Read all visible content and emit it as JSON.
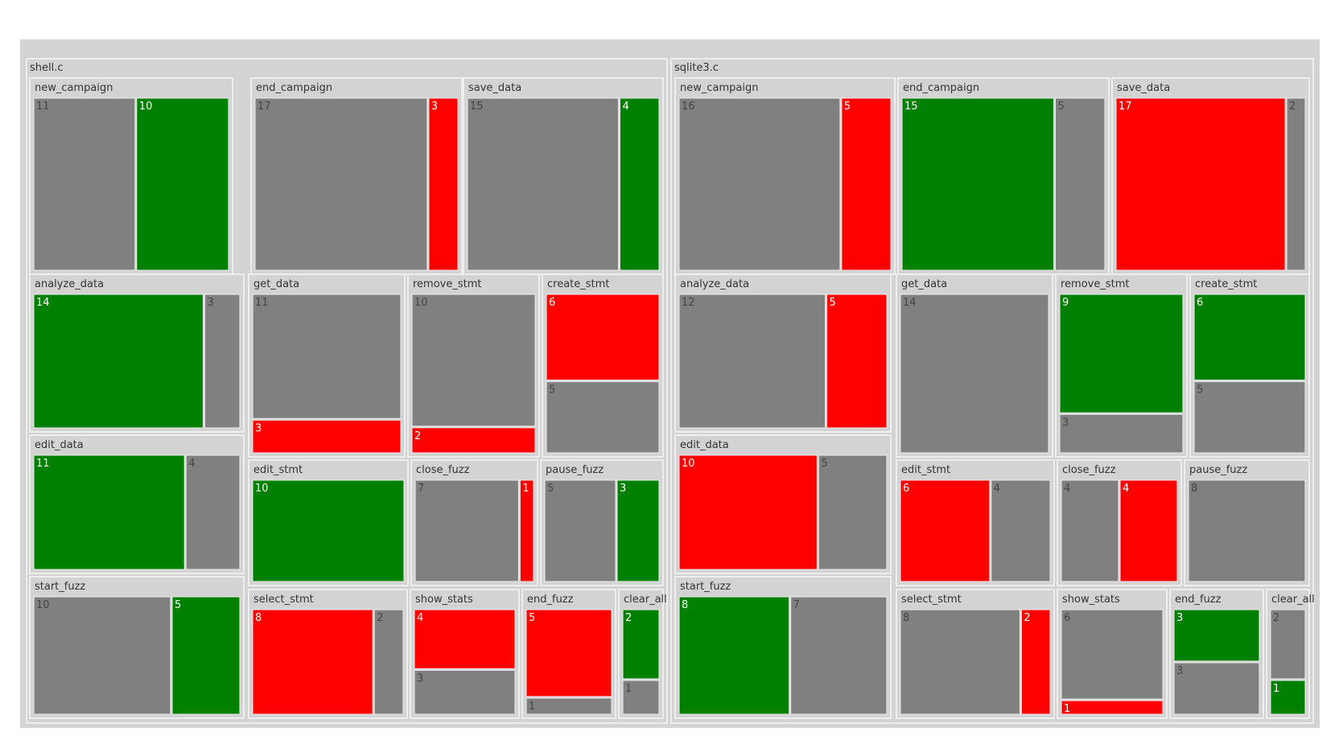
{
  "colors": {
    "background": "#ffffff",
    "root_fill": "#d3d3d3",
    "group_fill": "#d3d3d3",
    "border": "#eeeeee",
    "label_text": "#333333",
    "neutral_fill": "#808080",
    "positive_fill": "#008000",
    "negative_fill": "#ff0000",
    "leaf_text_light": "#ffffff",
    "leaf_text_dark": "#444444"
  },
  "chart_data": {
    "type": "treemap",
    "title": "",
    "color_categories": {
      "neutral": "#808080",
      "increase": "#008000",
      "decrease": "#ff0000"
    },
    "files": [
      {
        "name": "shell.c",
        "functions": [
          {
            "name": "new_campaign",
            "cells": [
              {
                "value": 11,
                "status": "neutral"
              },
              {
                "value": 10,
                "status": "increase"
              }
            ]
          },
          {
            "name": "end_campaign",
            "cells": [
              {
                "value": 17,
                "status": "neutral"
              },
              {
                "value": 3,
                "status": "decrease"
              }
            ]
          },
          {
            "name": "save_data",
            "cells": [
              {
                "value": 15,
                "status": "neutral"
              },
              {
                "value": 4,
                "status": "increase"
              }
            ]
          },
          {
            "name": "analyze_data",
            "cells": [
              {
                "value": 14,
                "status": "increase"
              },
              {
                "value": 3,
                "status": "neutral"
              }
            ]
          },
          {
            "name": "edit_data",
            "cells": [
              {
                "value": 11,
                "status": "increase"
              },
              {
                "value": 4,
                "status": "neutral"
              }
            ]
          },
          {
            "name": "start_fuzz",
            "cells": [
              {
                "value": 10,
                "status": "neutral"
              },
              {
                "value": 5,
                "status": "increase"
              }
            ]
          },
          {
            "name": "get_data",
            "cells": [
              {
                "value": 11,
                "status": "neutral"
              },
              {
                "value": 3,
                "status": "decrease"
              }
            ]
          },
          {
            "name": "remove_stmt",
            "cells": [
              {
                "value": 10,
                "status": "neutral"
              },
              {
                "value": 2,
                "status": "decrease"
              }
            ]
          },
          {
            "name": "create_stmt",
            "cells": [
              {
                "value": 6,
                "status": "decrease"
              },
              {
                "value": 5,
                "status": "neutral"
              }
            ]
          },
          {
            "name": "edit_stmt",
            "cells": [
              {
                "value": 10,
                "status": "increase"
              }
            ]
          },
          {
            "name": "close_fuzz",
            "cells": [
              {
                "value": 7,
                "status": "neutral"
              },
              {
                "value": 1,
                "status": "decrease"
              }
            ]
          },
          {
            "name": "pause_fuzz",
            "cells": [
              {
                "value": 5,
                "status": "neutral"
              },
              {
                "value": 3,
                "status": "increase"
              }
            ]
          },
          {
            "name": "select_stmt",
            "cells": [
              {
                "value": 8,
                "status": "decrease"
              },
              {
                "value": 2,
                "status": "neutral"
              }
            ]
          },
          {
            "name": "show_stats",
            "cells": [
              {
                "value": 4,
                "status": "decrease"
              },
              {
                "value": 3,
                "status": "neutral"
              }
            ]
          },
          {
            "name": "end_fuzz",
            "cells": [
              {
                "value": 5,
                "status": "decrease"
              },
              {
                "value": 1,
                "status": "neutral"
              }
            ]
          },
          {
            "name": "clear_all",
            "cells": [
              {
                "value": 2,
                "status": "increase"
              },
              {
                "value": 1,
                "status": "neutral"
              }
            ]
          }
        ]
      },
      {
        "name": "sqlite3.c",
        "functions": [
          {
            "name": "new_campaign",
            "cells": [
              {
                "value": 16,
                "status": "neutral"
              },
              {
                "value": 5,
                "status": "decrease"
              }
            ]
          },
          {
            "name": "end_campaign",
            "cells": [
              {
                "value": 15,
                "status": "increase"
              },
              {
                "value": 5,
                "status": "neutral"
              }
            ]
          },
          {
            "name": "save_data",
            "cells": [
              {
                "value": 17,
                "status": "decrease"
              },
              {
                "value": 2,
                "status": "neutral"
              }
            ]
          },
          {
            "name": "analyze_data",
            "cells": [
              {
                "value": 12,
                "status": "neutral"
              },
              {
                "value": 5,
                "status": "decrease"
              }
            ]
          },
          {
            "name": "edit_data",
            "cells": [
              {
                "value": 10,
                "status": "decrease"
              },
              {
                "value": 5,
                "status": "neutral"
              }
            ]
          },
          {
            "name": "start_fuzz",
            "cells": [
              {
                "value": 8,
                "status": "increase"
              },
              {
                "value": 7,
                "status": "neutral"
              }
            ]
          },
          {
            "name": "get_data",
            "cells": [
              {
                "value": 14,
                "status": "neutral"
              }
            ]
          },
          {
            "name": "remove_stmt",
            "cells": [
              {
                "value": 9,
                "status": "increase"
              },
              {
                "value": 3,
                "status": "neutral"
              }
            ]
          },
          {
            "name": "create_stmt",
            "cells": [
              {
                "value": 6,
                "status": "increase"
              },
              {
                "value": 5,
                "status": "neutral"
              }
            ]
          },
          {
            "name": "edit_stmt",
            "cells": [
              {
                "value": 6,
                "status": "decrease"
              },
              {
                "value": 4,
                "status": "neutral"
              }
            ]
          },
          {
            "name": "close_fuzz",
            "cells": [
              {
                "value": 4,
                "status": "neutral"
              },
              {
                "value": 4,
                "status": "decrease"
              }
            ]
          },
          {
            "name": "pause_fuzz",
            "cells": [
              {
                "value": 8,
                "status": "neutral"
              }
            ]
          },
          {
            "name": "select_stmt",
            "cells": [
              {
                "value": 8,
                "status": "neutral"
              },
              {
                "value": 2,
                "status": "decrease"
              }
            ]
          },
          {
            "name": "show_stats",
            "cells": [
              {
                "value": 6,
                "status": "neutral"
              },
              {
                "value": 1,
                "status": "decrease"
              }
            ]
          },
          {
            "name": "end_fuzz",
            "cells": [
              {
                "value": 3,
                "status": "increase"
              },
              {
                "value": 3,
                "status": "neutral"
              }
            ]
          },
          {
            "name": "clear_all",
            "cells": [
              {
                "value": 2,
                "status": "neutral"
              },
              {
                "value": 1,
                "status": "increase"
              }
            ]
          }
        ]
      }
    ]
  }
}
